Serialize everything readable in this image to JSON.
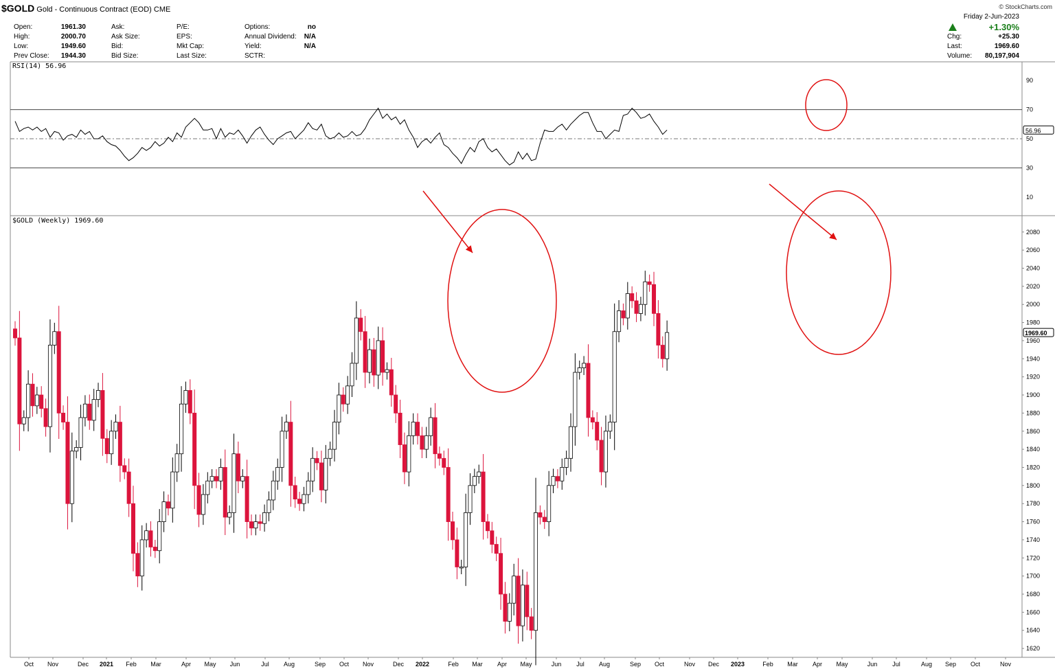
{
  "header": {
    "symbol": "$GOLD",
    "description": "Gold - Continuous Contract (EOD)",
    "exchange": "CME",
    "credit": "© StockCharts.com"
  },
  "quote_left": [
    {
      "label": "Open:",
      "value": "1961.30"
    },
    {
      "label": "High:",
      "value": "2000.70"
    },
    {
      "label": "Low:",
      "value": "1949.60"
    },
    {
      "label": "Prev Close:",
      "value": "1944.30"
    }
  ],
  "quote_mid": [
    {
      "label": "Ask:",
      "value": ""
    },
    {
      "label": "Ask Size:",
      "value": ""
    },
    {
      "label": "Bid:",
      "value": ""
    },
    {
      "label": "Bid Size:",
      "value": ""
    }
  ],
  "quote_mid2": [
    {
      "label": "P/E:",
      "value": ""
    },
    {
      "label": "EPS:",
      "value": ""
    },
    {
      "label": "Mkt Cap:",
      "value": ""
    },
    {
      "label": "Last Size:",
      "value": ""
    }
  ],
  "quote_right": [
    {
      "label": "Options:",
      "value": "no"
    },
    {
      "label": "Annual Dividend:",
      "value": "N/A"
    },
    {
      "label": "Yield:",
      "value": "N/A"
    },
    {
      "label": "SCTR:",
      "value": ""
    }
  ],
  "summary": {
    "date": "Friday   2-Jun-2023",
    "change_pct": "+1.30%",
    "rows": [
      {
        "label": "Chg:",
        "value": "+25.30"
      },
      {
        "label": "Last:",
        "value": "1969.60"
      },
      {
        "label": "Volume:",
        "value": "80,197,904"
      }
    ],
    "up_color": "#1a7f1a"
  },
  "chart_data": [
    {
      "type": "line",
      "title": "RSI(14) 56.96",
      "label_badge": "56.96",
      "ylim": [
        0,
        100
      ],
      "yticks": [
        10,
        30,
        50,
        70,
        90
      ],
      "reference_lines": [
        30,
        50,
        70
      ],
      "annotation": "red circle around RSI peak near 70 in April 2023",
      "color": "#000000",
      "series": [
        {
          "values": [
            62,
            55,
            57,
            58,
            56,
            58,
            55,
            57,
            51,
            55,
            54,
            49,
            52,
            53,
            51,
            56,
            53,
            55,
            50,
            50,
            52,
            48,
            46,
            45,
            42,
            38,
            35,
            37,
            40,
            44,
            42,
            44,
            48,
            45,
            47,
            51,
            48,
            54,
            51,
            58,
            61,
            64,
            61,
            56,
            56,
            57,
            50,
            57,
            51,
            54,
            53,
            56,
            52,
            47,
            52,
            56,
            58,
            53,
            49,
            46,
            50,
            52,
            54,
            55,
            50,
            53,
            56,
            61,
            57,
            56,
            60,
            52,
            50,
            51,
            54,
            51,
            52,
            55,
            52,
            53,
            57,
            63,
            67,
            71,
            64,
            67,
            63,
            65,
            60,
            63,
            56,
            51,
            44,
            48,
            50,
            47,
            51,
            54,
            46,
            44,
            40,
            37,
            33,
            39,
            44,
            41,
            48,
            50,
            44,
            41,
            43,
            39,
            35,
            32,
            34,
            41,
            36,
            40,
            35,
            36,
            47,
            56,
            55,
            55,
            58,
            60,
            56,
            60,
            63,
            66,
            68,
            68,
            61,
            55,
            55,
            50,
            53,
            56,
            55,
            66,
            67,
            71,
            68,
            64,
            65,
            67,
            62,
            58,
            53,
            56
          ]
        }
      ],
      "annotations": [
        "RSI(14) 56.96"
      ]
    },
    {
      "type": "candlestick",
      "title": "$GOLD (Weekly) 1969.60",
      "label_badge": "1969.60",
      "ylim": [
        1614,
        2095
      ],
      "yticks": [
        1620,
        1640,
        1660,
        1680,
        1700,
        1720,
        1740,
        1760,
        1780,
        1800,
        1820,
        1840,
        1860,
        1880,
        1900,
        1920,
        1940,
        1960,
        1980,
        2000,
        2020,
        2040,
        2060,
        2080
      ],
      "x_tick_labels": [
        "Oct",
        "Nov",
        "Dec",
        "2021",
        "Feb",
        "Mar",
        "Apr",
        "May",
        "Jun",
        "Jul",
        "Aug",
        "Sep",
        "Oct",
        "Nov",
        "Dec",
        "2022",
        "Feb",
        "Mar",
        "Apr",
        "May",
        "Jun",
        "Jul",
        "Aug",
        "Sep",
        "Oct",
        "Nov",
        "Dec",
        "2023",
        "Feb",
        "Mar",
        "Apr",
        "May",
        "Jun",
        "Jul",
        "Aug",
        "Sep",
        "Oct",
        "Nov"
      ],
      "colors": {
        "down": "#dc143c",
        "up": "#ffffff",
        "outline": "#000000"
      },
      "annotations": [
        "red circle around March 2022 high with arrow",
        "red circle around April-May 2023 highs with arrow"
      ],
      "closes": [
        1963,
        1868,
        1875,
        1912,
        1888,
        1900,
        1885,
        1865,
        1955,
        1970,
        1880,
        1870,
        1780,
        1838,
        1842,
        1875,
        1890,
        1872,
        1895,
        1905,
        1852,
        1835,
        1860,
        1870,
        1822,
        1815,
        1780,
        1725,
        1700,
        1740,
        1750,
        1732,
        1728,
        1760,
        1782,
        1775,
        1815,
        1835,
        1890,
        1905,
        1880,
        1800,
        1768,
        1790,
        1805,
        1810,
        1805,
        1820,
        1765,
        1770,
        1835,
        1805,
        1810,
        1760,
        1753,
        1760,
        1758,
        1770,
        1784,
        1805,
        1820,
        1860,
        1870,
        1800,
        1785,
        1780,
        1790,
        1805,
        1830,
        1825,
        1795,
        1830,
        1840,
        1870,
        1900,
        1890,
        1910,
        1935,
        1985,
        1970,
        1925,
        1950,
        1922,
        1960,
        1925,
        1928,
        1900,
        1880,
        1845,
        1815,
        1855,
        1870,
        1855,
        1840,
        1855,
        1875,
        1835,
        1830,
        1820,
        1760,
        1740,
        1710,
        1710,
        1770,
        1800,
        1810,
        1815,
        1760,
        1750,
        1735,
        1725,
        1680,
        1650,
        1670,
        1700,
        1645,
        1690,
        1655,
        1640,
        1770,
        1765,
        1760,
        1800,
        1810,
        1805,
        1820,
        1830,
        1865,
        1925,
        1930,
        1935,
        1875,
        1870,
        1850,
        1815,
        1860,
        1870,
        1970,
        1993,
        1985,
        2012,
        2004,
        1990,
        2000,
        2025,
        2022,
        1990,
        1955,
        1940,
        1969
      ]
    }
  ]
}
